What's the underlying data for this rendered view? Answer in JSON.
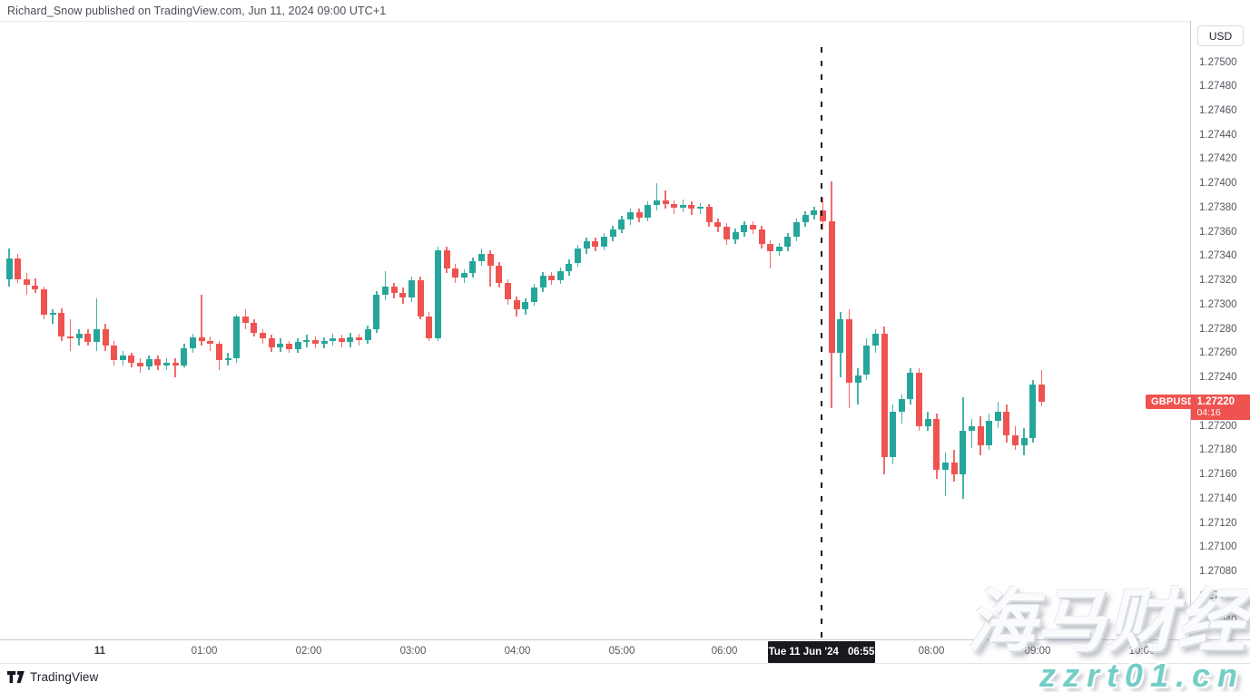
{
  "header": {
    "title": "Richard_Snow published on TradingView.com, Jun 11, 2024 09:00 UTC+1"
  },
  "price_axis": {
    "currency_button": "USD",
    "symbol_badge": {
      "label": "GBPUSD",
      "color": "#ef5350"
    },
    "price_badge": {
      "price": "1.27220",
      "countdown": "04:16",
      "color": "#ef5350"
    }
  },
  "crosshair": {
    "date": "Tue 11 Jun '24",
    "time": "06:55",
    "x": 905
  },
  "footer": {
    "brand": "TradingView"
  },
  "watermark": {
    "line1": "海马财经",
    "line2": "zzrt01.cn",
    "accent": "#74cec7"
  },
  "chart_data": {
    "type": "candlestick",
    "symbol": "GBPUSD",
    "quote_currency": "USD",
    "interval_minutes": 5,
    "last_price": 1.2722,
    "up_color": "#26a69a",
    "down_color": "#ef5350",
    "grid": "off",
    "legend_position": "none",
    "ylim": [
      1.27024,
      1.27534
    ],
    "y_ticks": [
      "1.27500",
      "1.27480",
      "1.27460",
      "1.27440",
      "1.27420",
      "1.27400",
      "1.27380",
      "1.27360",
      "1.27340",
      "1.27320",
      "1.27300",
      "1.27280",
      "1.27260",
      "1.27240",
      "1.27220",
      "1.27200",
      "1.27180",
      "1.27160",
      "1.27140",
      "1.27120",
      "1.27100",
      "1.27080",
      "1.27060",
      "1.27040"
    ],
    "x_ticks": [
      {
        "label": "11",
        "x": 110,
        "bold": true
      },
      {
        "label": "01:00",
        "x": 225,
        "bold": false
      },
      {
        "label": "02:00",
        "x": 340,
        "bold": false
      },
      {
        "label": "03:00",
        "x": 455,
        "bold": false
      },
      {
        "label": "04:00",
        "x": 570,
        "bold": false
      },
      {
        "label": "05:00",
        "x": 685,
        "bold": false
      },
      {
        "label": "06:00",
        "x": 798,
        "bold": false
      },
      {
        "label": "08:00",
        "x": 1026,
        "bold": false
      },
      {
        "label": "09:00",
        "x": 1143,
        "bold": false
      },
      {
        "label": "10:00",
        "x": 1258,
        "bold": false
      }
    ],
    "price_base": 1.27,
    "price_unit": 0.0001,
    "ohlc_format": "[open, high, low, close] as pips above price_base (1 pip = 0.0001)",
    "candles": [
      [
        32.1,
        34.6,
        31.5,
        33.8
      ],
      [
        33.8,
        34.2,
        31.8,
        32.1
      ],
      [
        32.1,
        32.6,
        30.8,
        31.6
      ],
      [
        31.6,
        32.2,
        31.0,
        31.3
      ],
      [
        31.3,
        31.5,
        28.8,
        29.2
      ],
      [
        29.2,
        29.6,
        28.4,
        29.3
      ],
      [
        29.3,
        29.7,
        27.0,
        27.4
      ],
      [
        27.4,
        28.8,
        26.2,
        27.2
      ],
      [
        27.2,
        28.0,
        26.6,
        27.6
      ],
      [
        27.6,
        28.0,
        26.6,
        26.9
      ],
      [
        26.9,
        30.5,
        26.2,
        28.0
      ],
      [
        28.0,
        28.4,
        26.2,
        26.6
      ],
      [
        26.6,
        27.0,
        25.0,
        25.4
      ],
      [
        25.4,
        26.2,
        25.0,
        25.8
      ],
      [
        25.8,
        26.0,
        24.8,
        25.2
      ],
      [
        25.2,
        25.6,
        24.4,
        24.9
      ],
      [
        24.9,
        25.8,
        24.6,
        25.5
      ],
      [
        25.5,
        25.8,
        24.6,
        25.0
      ],
      [
        25.0,
        25.6,
        24.6,
        25.2
      ],
      [
        25.2,
        25.6,
        24.0,
        25.0
      ],
      [
        25.0,
        26.8,
        24.8,
        26.4
      ],
      [
        26.4,
        27.6,
        26.0,
        27.3
      ],
      [
        27.3,
        30.8,
        26.6,
        27.0
      ],
      [
        27.0,
        27.4,
        26.2,
        26.8
      ],
      [
        26.8,
        27.0,
        24.6,
        25.4
      ],
      [
        25.4,
        26.0,
        25.0,
        25.6
      ],
      [
        25.6,
        29.2,
        25.2,
        29.0
      ],
      [
        29.0,
        29.6,
        28.0,
        28.5
      ],
      [
        28.5,
        28.8,
        27.4,
        27.7
      ],
      [
        27.7,
        28.0,
        26.8,
        27.2
      ],
      [
        27.2,
        27.5,
        26.1,
        26.5
      ],
      [
        26.5,
        27.2,
        26.1,
        26.8
      ],
      [
        26.8,
        27.0,
        26.0,
        26.3
      ],
      [
        26.3,
        27.2,
        26.0,
        26.9
      ],
      [
        26.9,
        27.5,
        26.5,
        27.1
      ],
      [
        27.1,
        27.4,
        26.4,
        26.8
      ],
      [
        26.8,
        27.3,
        26.4,
        27.0
      ],
      [
        27.0,
        27.6,
        26.6,
        27.2
      ],
      [
        27.2,
        27.5,
        26.5,
        26.9
      ],
      [
        26.9,
        27.7,
        26.5,
        27.3
      ],
      [
        27.3,
        27.6,
        26.6,
        27.1
      ],
      [
        27.1,
        28.3,
        26.8,
        28.0
      ],
      [
        28.0,
        31.1,
        27.7,
        30.8
      ],
      [
        30.8,
        32.8,
        30.4,
        31.5
      ],
      [
        31.5,
        31.8,
        30.5,
        31.0
      ],
      [
        31.0,
        31.4,
        30.1,
        30.6
      ],
      [
        30.6,
        32.3,
        30.2,
        32.0
      ],
      [
        32.0,
        32.3,
        28.8,
        29.0
      ],
      [
        29.0,
        29.4,
        27.0,
        27.2
      ],
      [
        27.2,
        34.8,
        27.0,
        34.5
      ],
      [
        34.5,
        34.8,
        32.6,
        33.0
      ],
      [
        33.0,
        33.4,
        31.8,
        32.2
      ],
      [
        32.2,
        32.9,
        31.8,
        32.6
      ],
      [
        32.6,
        33.9,
        32.2,
        33.6
      ],
      [
        33.6,
        34.6,
        33.2,
        34.2
      ],
      [
        34.2,
        34.5,
        31.5,
        33.2
      ],
      [
        33.2,
        33.5,
        31.4,
        31.8
      ],
      [
        31.8,
        32.1,
        30.0,
        30.4
      ],
      [
        30.4,
        30.7,
        29.0,
        29.6
      ],
      [
        29.6,
        30.5,
        29.2,
        30.2
      ],
      [
        30.2,
        31.7,
        29.9,
        31.4
      ],
      [
        31.4,
        32.7,
        31.0,
        32.4
      ],
      [
        32.4,
        32.7,
        31.6,
        32.0
      ],
      [
        32.0,
        33.1,
        31.7,
        32.8
      ],
      [
        32.8,
        33.7,
        32.4,
        33.4
      ],
      [
        33.4,
        34.9,
        33.1,
        34.6
      ],
      [
        34.6,
        35.5,
        34.2,
        35.2
      ],
      [
        35.2,
        35.5,
        34.4,
        34.8
      ],
      [
        34.8,
        35.9,
        34.5,
        35.6
      ],
      [
        35.6,
        36.5,
        35.2,
        36.2
      ],
      [
        36.2,
        37.3,
        35.9,
        37.0
      ],
      [
        37.0,
        37.9,
        36.6,
        37.6
      ],
      [
        37.6,
        37.9,
        36.8,
        37.2
      ],
      [
        37.2,
        38.5,
        36.9,
        38.2
      ],
      [
        38.2,
        40.0,
        37.8,
        38.6
      ],
      [
        38.6,
        39.4,
        37.9,
        38.3
      ],
      [
        38.3,
        38.6,
        37.5,
        38.0
      ],
      [
        38.0,
        38.7,
        37.6,
        38.2
      ],
      [
        38.2,
        38.5,
        37.4,
        37.9
      ],
      [
        37.9,
        38.4,
        37.5,
        38.1
      ],
      [
        38.1,
        38.3,
        36.4,
        36.8
      ],
      [
        36.8,
        37.1,
        36.0,
        36.4
      ],
      [
        36.4,
        36.7,
        34.9,
        35.4
      ],
      [
        35.4,
        36.3,
        35.0,
        36.0
      ],
      [
        36.0,
        36.9,
        35.6,
        36.6
      ],
      [
        36.6,
        36.9,
        35.8,
        36.2
      ],
      [
        36.2,
        36.5,
        34.6,
        35.0
      ],
      [
        35.0,
        35.3,
        33.0,
        34.4
      ],
      [
        34.4,
        35.1,
        34.0,
        34.8
      ],
      [
        34.8,
        35.9,
        34.4,
        35.6
      ],
      [
        35.6,
        37.1,
        35.2,
        36.8
      ],
      [
        36.8,
        37.7,
        36.4,
        37.4
      ],
      [
        37.4,
        38.1,
        37.0,
        37.8
      ],
      [
        37.8,
        38.8,
        36.2,
        36.9
      ],
      [
        36.9,
        40.2,
        21.5,
        26.0
      ],
      [
        26.0,
        29.4,
        24.0,
        28.8
      ],
      [
        28.8,
        29.6,
        21.5,
        23.6
      ],
      [
        23.6,
        24.8,
        21.8,
        24.2
      ],
      [
        24.2,
        27.2,
        23.8,
        26.6
      ],
      [
        26.6,
        28.0,
        26.0,
        27.6
      ],
      [
        27.6,
        28.2,
        16.0,
        17.4
      ],
      [
        17.4,
        21.8,
        16.8,
        21.2
      ],
      [
        21.2,
        22.6,
        20.2,
        22.2
      ],
      [
        22.2,
        24.8,
        21.8,
        24.4
      ],
      [
        24.4,
        24.8,
        19.6,
        20.0
      ],
      [
        20.0,
        21.2,
        19.6,
        20.6
      ],
      [
        20.6,
        21.0,
        15.6,
        16.4
      ],
      [
        16.4,
        17.8,
        14.2,
        17.0
      ],
      [
        17.0,
        18.0,
        15.4,
        16.0
      ],
      [
        16.0,
        22.4,
        14.0,
        19.6
      ],
      [
        19.6,
        20.6,
        18.2,
        20.0
      ],
      [
        20.0,
        20.8,
        17.6,
        18.4
      ],
      [
        18.4,
        21.0,
        18.0,
        20.4
      ],
      [
        20.4,
        22.0,
        19.8,
        21.2
      ],
      [
        21.2,
        21.8,
        18.6,
        19.2
      ],
      [
        19.2,
        20.0,
        18.0,
        18.4
      ],
      [
        18.4,
        19.8,
        17.6,
        19.0
      ],
      [
        19.0,
        23.8,
        18.6,
        23.4
      ],
      [
        23.4,
        24.6,
        21.6,
        22.0
      ]
    ]
  }
}
